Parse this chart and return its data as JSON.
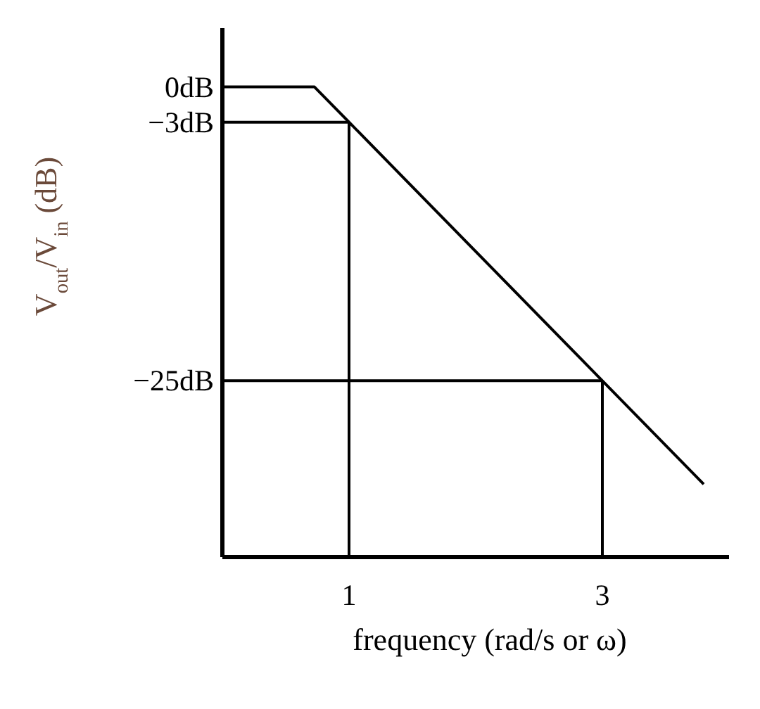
{
  "chart_data": {
    "type": "line",
    "xlabel": "frequency (rad/s or ω)",
    "ylabel": "V$_{out}$/V$_{in}$ (dB)",
    "x": [
      0,
      0.727,
      1,
      3,
      3.8
    ],
    "series": [
      {
        "color": "#000000",
        "values": [
          0,
          0,
          -3,
          -25,
          -33.8
        ]
      }
    ],
    "xlim": [
      0,
      4
    ],
    "xticks": [
      1,
      3
    ],
    "ylim": [
      -40,
      5
    ],
    "yticks": [
      {
        "value": 0,
        "label": "0dB"
      },
      {
        "value": -3,
        "label": "−3dB"
      },
      {
        "value": -25,
        "label": "−25dB"
      }
    ],
    "ref_lines": [
      {
        "axis": "y",
        "value": -3,
        "color": "#000000"
      },
      {
        "axis": "y",
        "value": -25,
        "color": "#000000"
      },
      {
        "axis": "x",
        "value": 1,
        "color": "#000000"
      },
      {
        "axis": "x",
        "value": 3,
        "color": "#000000"
      }
    ],
    "grid": false,
    "marker": "none",
    "line_style": "solid"
  }
}
